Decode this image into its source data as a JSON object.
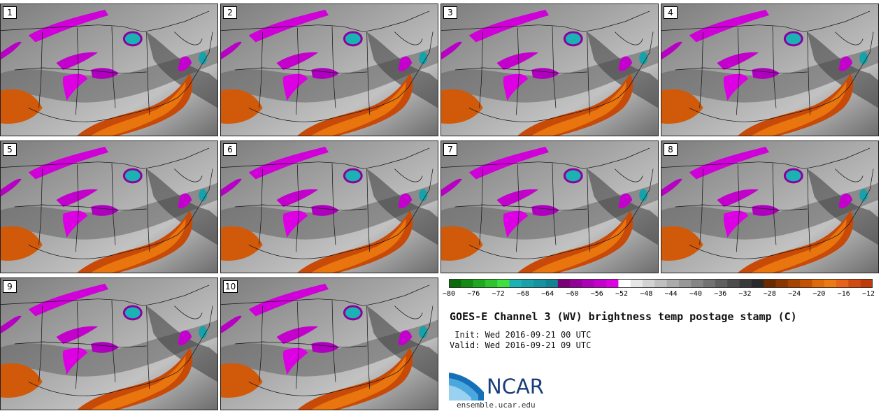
{
  "panels": [
    {
      "label": "1"
    },
    {
      "label": "2"
    },
    {
      "label": "3"
    },
    {
      "label": "4"
    },
    {
      "label": "5"
    },
    {
      "label": "6"
    },
    {
      "label": "7"
    },
    {
      "label": "8"
    },
    {
      "label": "9"
    },
    {
      "label": "10"
    }
  ],
  "colorbar": {
    "ticks": [
      "−80",
      "−76",
      "−72",
      "−68",
      "−64",
      "−60",
      "−56",
      "−52",
      "−48",
      "−44",
      "−40",
      "−36",
      "−32",
      "−28",
      "−24",
      "−20",
      "−16",
      "−12"
    ],
    "colors": [
      "#0a6b0a",
      "#148c14",
      "#1eaa1e",
      "#2ec42e",
      "#3fe03f",
      "#1ab2b2",
      "#17a1a8",
      "#1592a0",
      "#128295",
      "#7a007a",
      "#93009a",
      "#ad00b8",
      "#c400cc",
      "#dd00e4",
      "#ffffff",
      "#e6e6e6",
      "#d2d2d2",
      "#bfbfbf",
      "#ababab",
      "#989898",
      "#858585",
      "#727272",
      "#5f5f5f",
      "#4c4c4c",
      "#3a3a3a",
      "#2a2a2a",
      "#6b2a00",
      "#8a3600",
      "#a84400",
      "#c45200",
      "#de6a08",
      "#ec7a10",
      "#e8621a",
      "#d24a10",
      "#c03a08"
    ]
  },
  "title": "GOES-E Channel 3 (WV) brightness temp postage stamp (C)",
  "init": " Init: Wed 2016-09-21 00 UTC",
  "valid": "Valid: Wed 2016-09-21 09 UTC",
  "logo": {
    "text": "NCAR"
  },
  "site": "ensemble.ucar.edu"
}
